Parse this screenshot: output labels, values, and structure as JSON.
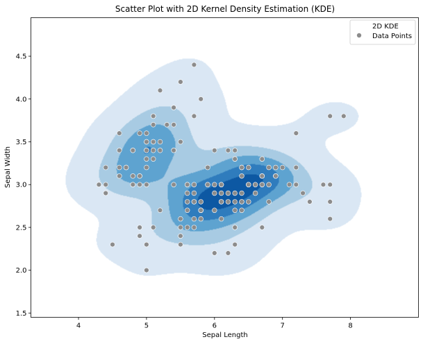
{
  "chart_data": {
    "type": "scatter",
    "title": "Scatter Plot with 2D Kernel Density Estimation (KDE)",
    "xlabel": "Sepal Length",
    "ylabel": "Sepal Width",
    "xlim": [
      3.3,
      9.0
    ],
    "ylim": [
      1.45,
      4.95
    ],
    "xticks": [
      4,
      5,
      6,
      7,
      8
    ],
    "yticks": [
      1.5,
      2.0,
      2.5,
      3.0,
      3.5,
      4.0,
      4.5
    ],
    "grid": false,
    "legend": {
      "placement": "top-right",
      "entries": [
        "2D KDE",
        "Data Points"
      ]
    },
    "colors": {
      "kde_levels": [
        "#dae7f4",
        "#a8cbe3",
        "#5ea3d0",
        "#2f7cbd",
        "#0d58a3"
      ],
      "points": "#8c8c8c",
      "point_edge": "#ffffff"
    },
    "series": [
      {
        "name": "Data Points",
        "x": [
          5.1,
          4.9,
          4.7,
          4.6,
          5.0,
          5.4,
          4.6,
          5.0,
          4.4,
          4.9,
          5.4,
          4.8,
          4.8,
          4.3,
          5.8,
          5.7,
          5.4,
          5.1,
          5.7,
          5.1,
          5.4,
          5.1,
          4.6,
          5.1,
          4.8,
          5.0,
          5.0,
          5.2,
          5.2,
          4.7,
          4.8,
          5.4,
          5.2,
          5.5,
          4.9,
          5.0,
          5.5,
          4.9,
          4.4,
          5.1,
          5.0,
          4.5,
          4.4,
          5.0,
          5.1,
          4.8,
          5.1,
          4.6,
          5.3,
          5.0,
          7.0,
          6.4,
          6.9,
          5.5,
          6.5,
          5.7,
          6.3,
          4.9,
          6.6,
          5.2,
          5.0,
          5.9,
          6.0,
          6.1,
          5.6,
          6.7,
          5.6,
          5.8,
          6.2,
          5.6,
          5.9,
          6.1,
          6.3,
          6.1,
          6.4,
          6.6,
          6.8,
          6.7,
          6.0,
          5.7,
          5.5,
          5.5,
          5.8,
          6.0,
          5.4,
          6.0,
          6.7,
          6.3,
          5.6,
          5.5,
          5.5,
          6.1,
          5.8,
          5.0,
          5.6,
          5.7,
          5.7,
          6.2,
          5.1,
          5.7,
          6.3,
          5.8,
          7.1,
          6.3,
          6.5,
          7.6,
          4.9,
          7.3,
          6.7,
          7.2,
          6.5,
          6.4,
          6.8,
          5.7,
          5.8,
          6.4,
          6.5,
          7.7,
          7.7,
          6.0,
          6.9,
          5.6,
          7.7,
          6.3,
          6.7,
          7.2,
          6.2,
          6.1,
          6.4,
          7.2,
          7.4,
          7.9,
          6.4,
          6.3,
          6.1,
          7.7,
          6.3,
          6.4,
          6.0,
          6.9,
          6.7,
          6.9,
          5.8,
          6.8,
          6.7,
          6.7,
          6.3,
          6.5,
          6.2,
          5.9
        ],
        "y": [
          3.5,
          3.0,
          3.2,
          3.1,
          3.6,
          3.9,
          3.4,
          3.4,
          2.9,
          3.1,
          3.7,
          3.4,
          3.0,
          3.0,
          4.0,
          4.4,
          3.9,
          3.5,
          3.8,
          3.8,
          3.4,
          3.7,
          3.6,
          3.3,
          3.4,
          3.0,
          3.4,
          3.5,
          3.4,
          3.2,
          3.1,
          3.4,
          4.1,
          4.2,
          3.1,
          3.2,
          3.5,
          3.6,
          3.0,
          3.4,
          3.5,
          2.3,
          3.2,
          3.5,
          3.8,
          3.0,
          3.8,
          3.2,
          3.7,
          3.3,
          3.2,
          3.2,
          3.1,
          2.3,
          2.8,
          2.8,
          3.3,
          2.4,
          2.9,
          2.7,
          2.0,
          3.0,
          2.2,
          2.9,
          2.9,
          3.1,
          3.0,
          2.7,
          2.2,
          2.5,
          3.2,
          2.8,
          2.5,
          2.8,
          2.9,
          3.0,
          2.8,
          3.0,
          2.9,
          2.6,
          2.4,
          2.4,
          2.7,
          2.7,
          3.0,
          3.4,
          3.1,
          2.3,
          3.0,
          2.5,
          2.6,
          3.0,
          2.6,
          2.3,
          2.7,
          3.0,
          2.9,
          2.9,
          2.5,
          2.8,
          3.3,
          2.7,
          3.0,
          2.9,
          3.0,
          3.0,
          2.5,
          2.9,
          2.5,
          3.6,
          3.2,
          2.7,
          3.0,
          2.5,
          2.8,
          3.2,
          3.0,
          3.8,
          2.6,
          2.2,
          3.2,
          2.8,
          2.8,
          2.7,
          3.3,
          3.2,
          2.8,
          3.0,
          2.8,
          3.0,
          2.8,
          3.8,
          2.8,
          2.8,
          2.6,
          3.0,
          3.4,
          3.1,
          3.0,
          3.1,
          3.1,
          3.1,
          2.7,
          3.2,
          3.3,
          3.0,
          2.5,
          3.0,
          3.4,
          3.0
        ]
      }
    ]
  }
}
